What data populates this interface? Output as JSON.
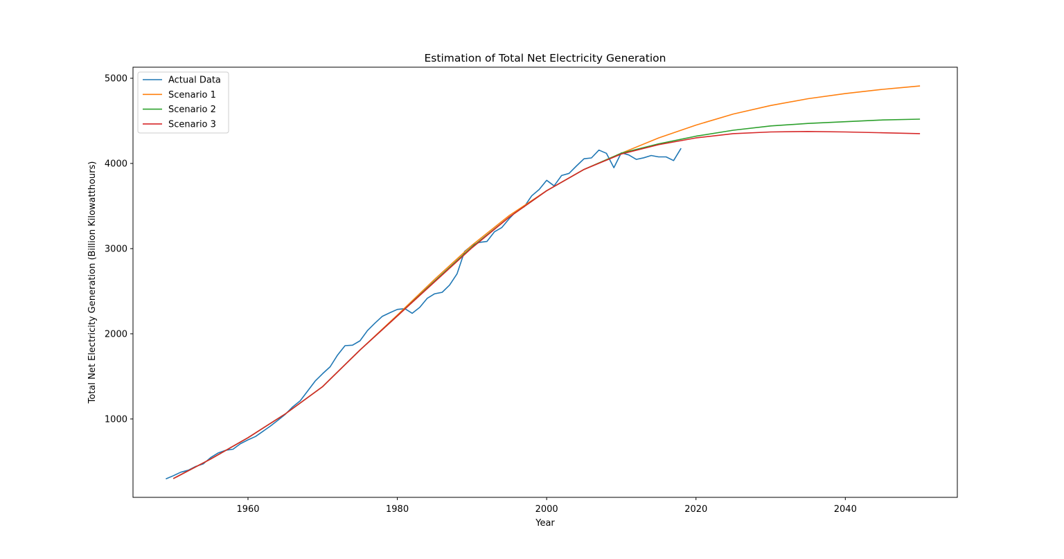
{
  "chart_data": {
    "type": "line",
    "title": "Estimation of Total Net Electricity Generation",
    "xlabel": "Year",
    "ylabel": "Total Net Electricity Generation (Billion Kilowatthours)",
    "xlim": [
      1944.6,
      2055
    ],
    "ylim": [
      80,
      5130
    ],
    "xticks": [
      1960,
      1980,
      2000,
      2020,
      2040
    ],
    "yticks": [
      1000,
      2000,
      3000,
      4000,
      5000
    ],
    "grid": false,
    "legend_position": "top-left",
    "series": [
      {
        "name": "Actual Data",
        "color": "#1f77b4",
        "x": [
          1949,
          1950,
          1951,
          1952,
          1953,
          1954,
          1955,
          1956,
          1957,
          1958,
          1959,
          1960,
          1961,
          1962,
          1963,
          1964,
          1965,
          1966,
          1967,
          1968,
          1969,
          1970,
          1971,
          1972,
          1973,
          1974,
          1975,
          1976,
          1977,
          1978,
          1979,
          1980,
          1981,
          1982,
          1983,
          1984,
          1985,
          1986,
          1987,
          1988,
          1989,
          1990,
          1991,
          1992,
          1993,
          1994,
          1995,
          1996,
          1997,
          1998,
          1999,
          2000,
          2001,
          2002,
          2003,
          2004,
          2005,
          2006,
          2007,
          2008,
          2009,
          2010,
          2011,
          2012,
          2013,
          2014,
          2015,
          2016,
          2017,
          2018
        ],
        "y": [
          296,
          334,
          375,
          399,
          443,
          472,
          547,
          601,
          632,
          645,
          710,
          755,
          794,
          855,
          917,
          984,
          1055,
          1144,
          1214,
          1329,
          1445,
          1532,
          1613,
          1750,
          1861,
          1867,
          1918,
          2038,
          2124,
          2206,
          2247,
          2286,
          2295,
          2241,
          2310,
          2416,
          2470,
          2487,
          2572,
          2704,
          2967,
          3038,
          3073,
          3084,
          3197,
          3248,
          3353,
          3444,
          3492,
          3620,
          3695,
          3802,
          3737,
          3858,
          3883,
          3971,
          4055,
          4065,
          4157,
          4119,
          3950,
          4125,
          4100,
          4048,
          4066,
          4093,
          4077,
          4077,
          4034,
          4178
        ]
      },
      {
        "name": "Scenario 1",
        "color": "#ff7f0e",
        "x": [
          1950,
          1955,
          1960,
          1965,
          1970,
          1975,
          1980,
          1985,
          1990,
          1995,
          2000,
          2005,
          2010,
          2015,
          2020,
          2025,
          2030,
          2035,
          2040,
          2045,
          2050
        ],
        "y": [
          300,
          530,
          780,
          1060,
          1380,
          1810,
          2220,
          2640,
          3040,
          3390,
          3680,
          3930,
          4120,
          4300,
          4450,
          4580,
          4680,
          4760,
          4820,
          4870,
          4910
        ]
      },
      {
        "name": "Scenario 2",
        "color": "#2ca02c",
        "x": [
          1950,
          1955,
          1960,
          1965,
          1970,
          1975,
          1980,
          1985,
          1990,
          1995,
          2000,
          2005,
          2010,
          2015,
          2020,
          2025,
          2030,
          2035,
          2040,
          2045,
          2050
        ],
        "y": [
          300,
          530,
          780,
          1060,
          1380,
          1810,
          2210,
          2620,
          3020,
          3370,
          3680,
          3930,
          4120,
          4230,
          4320,
          4390,
          4440,
          4470,
          4490,
          4510,
          4520
        ]
      },
      {
        "name": "Scenario 3",
        "color": "#d62728",
        "x": [
          1950,
          1955,
          1960,
          1965,
          1970,
          1975,
          1980,
          1985,
          1990,
          1995,
          2000,
          2005,
          2010,
          2015,
          2020,
          2025,
          2030,
          2035,
          2040,
          2045,
          2050
        ],
        "y": [
          300,
          530,
          780,
          1060,
          1380,
          1810,
          2210,
          2610,
          3010,
          3370,
          3680,
          3930,
          4110,
          4220,
          4300,
          4350,
          4370,
          4375,
          4370,
          4360,
          4350
        ]
      }
    ]
  }
}
